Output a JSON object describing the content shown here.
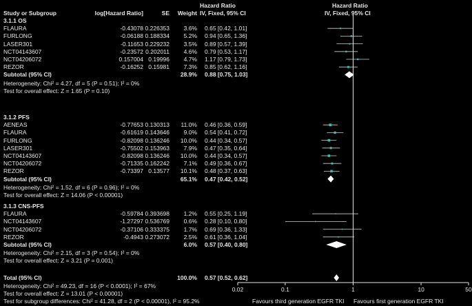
{
  "header": {
    "study": "Study or Subgroup",
    "loghr": "log[Hazard Ratio]",
    "se": "SE",
    "weight": "Weight",
    "hr_line1": "Hazard Ratio",
    "hr_line2": "IV, Fixed, 95% CI",
    "plot_line1": "Hazard Ratio",
    "plot_line2": "IV, Fixed, 95% CI"
  },
  "chart_data": {
    "type": "forest",
    "x_scale": "log",
    "xlim": [
      0.02,
      50
    ],
    "x_ticks": [
      "0.02",
      "0.1",
      "1",
      "10",
      "50"
    ],
    "x_tick_values": [
      0.02,
      0.1,
      1,
      10,
      50
    ],
    "favours_left": "Favours third generation EGFR TKI",
    "favours_right": "Favours first generation EGFR TKI",
    "colors": {
      "background": "#000000",
      "text": "#e6e6e6",
      "marker": "#2ec4b6",
      "diamond": "#ffffff"
    },
    "groups": [
      {
        "title": "3.1.1 OS",
        "studies": [
          {
            "name": "FLAURA",
            "loghr": "-0.43078",
            "se": "0.226353",
            "weight": "3.6%",
            "ci": "0.65 [0.42, 1.01]",
            "hr": 0.65,
            "lo": 0.42,
            "hi": 1.01
          },
          {
            "name": "FURLONG",
            "loghr": "-0.06188",
            "se": "0.188334",
            "weight": "5.2%",
            "ci": "0.94 [0.65, 1.36]",
            "hr": 0.94,
            "lo": 0.65,
            "hi": 1.36
          },
          {
            "name": "LASER301",
            "loghr": "-0.11653",
            "se": "0.229232",
            "weight": "3.5%",
            "ci": "0.89 [0.57, 1.39]",
            "hr": 0.89,
            "lo": 0.57,
            "hi": 1.39
          },
          {
            "name": "NCT04143607",
            "loghr": "-0.23572",
            "se": "0.202011",
            "weight": "4.6%",
            "ci": "0.79 [0.53, 1.17]",
            "hr": 0.79,
            "lo": 0.53,
            "hi": 1.17
          },
          {
            "name": "NCT04206072",
            "loghr": "0.157004",
            "se": "0.19996",
            "weight": "4.7%",
            "ci": "1.17 [0.79, 1.73]",
            "hr": 1.17,
            "lo": 0.79,
            "hi": 1.73
          },
          {
            "name": "REZOR",
            "loghr": "-0.16252",
            "se": "0.15981",
            "weight": "7.3%",
            "ci": "0.85 [0.62, 1.16]",
            "hr": 0.85,
            "lo": 0.62,
            "hi": 1.16
          }
        ],
        "subtotal": {
          "label": "Subtotal (95% CI)",
          "weight": "28.9%",
          "ci": "0.88 [0.75, 1.03]",
          "hr": 0.88,
          "lo": 0.75,
          "hi": 1.03
        },
        "heterogeneity": "Heterogeneity: Chi² = 4.27, df = 5 (P = 0.51); I² = 0%",
        "overall_effect": "Test for overall effect: Z = 1.65 (P = 0.10)"
      },
      {
        "title": "3.1.2 PFS",
        "studies": [
          {
            "name": "AENEAS",
            "loghr": "-0.77653",
            "se": "0.130313",
            "weight": "11.0%",
            "ci": "0.46 [0.36, 0.59]",
            "hr": 0.46,
            "lo": 0.36,
            "hi": 0.59
          },
          {
            "name": "FLAURA",
            "loghr": "-0.61619",
            "se": "0.143646",
            "weight": "9.0%",
            "ci": "0.54 [0.41, 0.72]",
            "hr": 0.54,
            "lo": 0.41,
            "hi": 0.72
          },
          {
            "name": "FURLONG",
            "loghr": "-0.82098",
            "se": "0.136246",
            "weight": "10.0%",
            "ci": "0.44 [0.34, 0.57]",
            "hr": 0.44,
            "lo": 0.34,
            "hi": 0.57
          },
          {
            "name": "LASER301",
            "loghr": "-0.75502",
            "se": "0.153963",
            "weight": "7.9%",
            "ci": "0.47 [0.35, 0.64]",
            "hr": 0.47,
            "lo": 0.35,
            "hi": 0.64
          },
          {
            "name": "NCT04143607",
            "loghr": "-0.82098",
            "se": "0.136246",
            "weight": "10.0%",
            "ci": "0.44 [0.34, 0.57]",
            "hr": 0.44,
            "lo": 0.34,
            "hi": 0.57
          },
          {
            "name": "NCT04206072",
            "loghr": "-0.71335",
            "se": "0.162242",
            "weight": "7.1%",
            "ci": "0.49 [0.36, 0.67]",
            "hr": 0.49,
            "lo": 0.36,
            "hi": 0.67
          },
          {
            "name": "REZOR",
            "loghr": "-0.73397",
            "se": "0.13577",
            "weight": "10.1%",
            "ci": "0.48 [0.37, 0.63]",
            "hr": 0.48,
            "lo": 0.37,
            "hi": 0.63
          }
        ],
        "subtotal": {
          "label": "Subtotal (95% CI)",
          "weight": "65.1%",
          "ci": "0.47 [0.42, 0.52]",
          "hr": 0.47,
          "lo": 0.42,
          "hi": 0.52
        },
        "heterogeneity": "Heterogeneity: Chi² = 1.52, df = 6 (P = 0.96); I² = 0%",
        "overall_effect": "Test for overall effect: Z = 14.06 (P < 0.00001)"
      },
      {
        "title": "3.1.3 CNS-PFS",
        "studies": [
          {
            "name": "FLAURA",
            "loghr": "-0.59784",
            "se": "0.393698",
            "weight": "1.2%",
            "ci": "0.55 [0.25, 1.19]",
            "hr": 0.55,
            "lo": 0.25,
            "hi": 1.19
          },
          {
            "name": "NCT04143607",
            "loghr": "-1.27297",
            "se": "0.536769",
            "weight": "0.6%",
            "ci": "0.28 [0.10, 0.80]",
            "hr": 0.28,
            "lo": 0.1,
            "hi": 0.8
          },
          {
            "name": "NCT04206072",
            "loghr": "-0.37106",
            "se": "0.333375",
            "weight": "1.7%",
            "ci": "0.69 [0.36, 1.33]",
            "hr": 0.69,
            "lo": 0.36,
            "hi": 1.33
          },
          {
            "name": "REZOR",
            "loghr": "-0.4943",
            "se": "0.273072",
            "weight": "2.5%",
            "ci": "0.61 [0.36, 1.04]",
            "hr": 0.61,
            "lo": 0.36,
            "hi": 1.04
          }
        ],
        "subtotal": {
          "label": "Subtotal (95% CI)",
          "weight": "6.0%",
          "ci": "0.57 [0.40, 0.80]",
          "hr": 0.57,
          "lo": 0.4,
          "hi": 0.8
        },
        "heterogeneity": "Heterogeneity: Chi² = 2.15, df = 3 (P = 0.54); I² = 0%",
        "overall_effect": "Test for overall effect: Z = 3.21 (P = 0.001)"
      }
    ],
    "total": {
      "label": "Total (95% CI)",
      "weight": "100.0%",
      "ci": "0.57 [0.52, 0.62]",
      "hr": 0.57,
      "lo": 0.52,
      "hi": 0.62
    },
    "total_heterogeneity": "Heterogeneity: Chi² = 49.23, df = 16 (P < 0.0001); I² = 67%",
    "total_overall_effect": "Test for overall effect: Z = 13.01 (P < 0.00001)",
    "subgroup_differences": "Test for subgroup differences: Chi² = 41.28, df = 2 (P < 0.00001), I² = 95.2%"
  }
}
